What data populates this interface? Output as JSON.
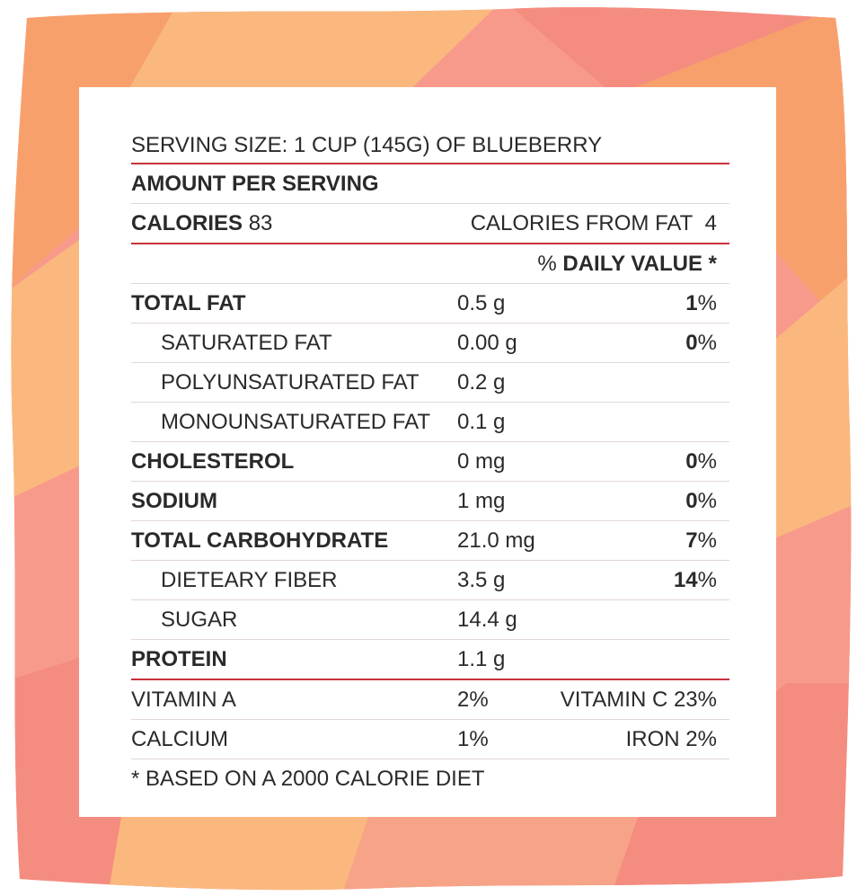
{
  "colors": {
    "frame": [
      "#f8a06c",
      "#fbb87e",
      "#f79a8b",
      "#f48c80",
      "#f7a388"
    ],
    "divider_red": "#c8323a",
    "divider_light": "#e2d6d6",
    "text": "#2a2a2a"
  },
  "label": {
    "serving_size": "SERVING SIZE: 1 CUP (145G) OF BLUEBERRY",
    "amount_per_serving": "AMOUNT PER SERVING",
    "calories_label": "CALORIES",
    "calories_value": "83",
    "calories_from_fat_label": "CALORIES FROM FAT",
    "calories_from_fat_value": "4",
    "dv_prefix": "%",
    "dv_label": "DAILY VALUE *",
    "nutrients": [
      {
        "name": "TOTAL FAT",
        "amount": "0.5 g",
        "dv_num": "1",
        "dv_pct": "%"
      },
      {
        "name": "SATURATED FAT",
        "amount": "0.00 g",
        "dv_num": "0",
        "dv_pct": "%"
      },
      {
        "name": "POLYUNSATURATED FAT",
        "amount": "0.2 g",
        "dv_num": "",
        "dv_pct": ""
      },
      {
        "name": "MONOUNSATURATED FAT",
        "amount": "0.1 g",
        "dv_num": "",
        "dv_pct": ""
      },
      {
        "name": "CHOLESTEROL",
        "amount": "0 mg",
        "dv_num": "0",
        "dv_pct": "%"
      },
      {
        "name": "SODIUM",
        "amount": "1 mg",
        "dv_num": "0",
        "dv_pct": "%"
      },
      {
        "name": "TOTAL CARBOHYDRATE",
        "amount": "21.0 mg",
        "dv_num": "7",
        "dv_pct": "%"
      },
      {
        "name": "DIETEARY FIBER",
        "amount": "3.5 g",
        "dv_num": "14",
        "dv_pct": "%"
      },
      {
        "name": "SUGAR",
        "amount": "14.4 g",
        "dv_num": "",
        "dv_pct": ""
      },
      {
        "name": "PROTEIN",
        "amount": "1.1 g",
        "dv_num": "",
        "dv_pct": ""
      }
    ],
    "vitamins": [
      {
        "left_name": "VITAMIN A",
        "left_value": "2%",
        "right": "VITAMIN C 23%"
      },
      {
        "left_name": "CALCIUM",
        "left_value": "1%",
        "right": "IRON 2%"
      }
    ],
    "footnote": "* BASED ON A 2000 CALORIE DIET"
  }
}
